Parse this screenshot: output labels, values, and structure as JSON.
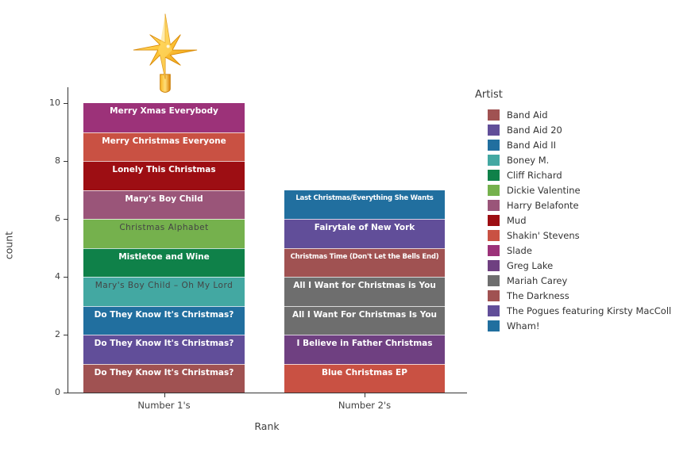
{
  "figure": {
    "background": "#FFFFFF",
    "axis_color": "#333333",
    "y_axis": {
      "label": "count"
    },
    "x_axis": {
      "label": "Rank"
    },
    "decorations": {
      "star": "gold christmas tree-topper star above Number 1's bar"
    },
    "legend": {
      "title": "Artist",
      "items": [
        {
          "label": "Band Aid",
          "color": "#A05252"
        },
        {
          "label": "Band Aid 20",
          "color": "#614E99"
        },
        {
          "label": "Band Aid II",
          "color": "#216F9F"
        },
        {
          "label": "Boney M.",
          "color": "#43A8A2"
        },
        {
          "label": "Cliff Richard",
          "color": "#0F8149"
        },
        {
          "label": "Dickie Valentine",
          "color": "#75B14D"
        },
        {
          "label": "Harry Belafonte",
          "color": "#9A5579"
        },
        {
          "label": "Mud",
          "color": "#9D0E13"
        },
        {
          "label": "Shakin' Stevens",
          "color": "#C95143"
        },
        {
          "label": "Slade",
          "color": "#9C3279"
        },
        {
          "label": "Greg Lake",
          "color": "#6F4081"
        },
        {
          "label": "Mariah Carey",
          "color": "#6E6E6E"
        },
        {
          "label": "The Darkness",
          "color": "#A05252"
        },
        {
          "label": "The Pogues featuring Kirsty MacColl",
          "color": "#614E99"
        },
        {
          "label": "Wham!",
          "color": "#216F9F"
        }
      ]
    }
  },
  "chart_data": {
    "type": "bar",
    "stacked": true,
    "title": "",
    "xlabel": "Rank",
    "ylabel": "count",
    "ylim": [
      0,
      10
    ],
    "yticks": [
      0,
      2,
      4,
      6,
      8,
      10
    ],
    "categories": [
      "Number 1's",
      "Number 2's"
    ],
    "legend_position": "right",
    "grid": false,
    "bars": [
      {
        "category": "Number 1's",
        "total": 10,
        "segments": [
          {
            "label": "Do They Know It's Christmas?",
            "artist": "Band Aid",
            "value": 1,
            "color": "#A05252",
            "text_color": "#FFFFFF"
          },
          {
            "label": "Do They Know It's Christmas?",
            "artist": "Band Aid 20",
            "value": 1,
            "color": "#614E99",
            "text_color": "#FFFFFF"
          },
          {
            "label": "Do They Know It's Christmas?",
            "artist": "Band Aid II",
            "value": 1,
            "color": "#216F9F",
            "text_color": "#FFFFFF"
          },
          {
            "label": "Mary's Boy Child – Oh My Lord",
            "artist": "Boney M.",
            "value": 1,
            "color": "#43A8A2",
            "text_color": "#444444"
          },
          {
            "label": "Mistletoe and Wine",
            "artist": "Cliff Richard",
            "value": 1,
            "color": "#0F8149",
            "text_color": "#FFFFFF"
          },
          {
            "label": "Christmas Alphabet",
            "artist": "Dickie Valentine",
            "value": 1,
            "color": "#75B14D",
            "text_color": "#444444"
          },
          {
            "label": "Mary's Boy Child",
            "artist": "Harry Belafonte",
            "value": 1,
            "color": "#9A5579",
            "text_color": "#FFFFFF"
          },
          {
            "label": "Lonely This Christmas",
            "artist": "Mud",
            "value": 1,
            "color": "#9D0E13",
            "text_color": "#FFFFFF"
          },
          {
            "label": "Merry Christmas Everyone",
            "artist": "Shakin' Stevens",
            "value": 1,
            "color": "#C95143",
            "text_color": "#FFFFFF"
          },
          {
            "label": "Merry Xmas Everybody",
            "artist": "Slade",
            "value": 1,
            "color": "#9C3279",
            "text_color": "#FFFFFF"
          }
        ]
      },
      {
        "category": "Number 2's",
        "total": 7,
        "segments": [
          {
            "label": "Blue Christmas EP",
            "artist": "Shakin' Stevens",
            "value": 1,
            "color": "#C95143",
            "text_color": "#FFFFFF"
          },
          {
            "label": "I Believe in Father Christmas",
            "artist": "Greg Lake",
            "value": 1,
            "color": "#6F4081",
            "text_color": "#FFFFFF"
          },
          {
            "label": "All I Want For Christmas Is You",
            "artist": "Mariah Carey",
            "value": 1,
            "color": "#6E6E6E",
            "text_color": "#FFFFFF"
          },
          {
            "label": "All I Want for Christmas is You",
            "artist": "Mariah Carey",
            "value": 1,
            "color": "#6E6E6E",
            "text_color": "#FFFFFF"
          },
          {
            "label": "Christmas Time (Don't Let the Bells End)",
            "artist": "The Darkness",
            "value": 1,
            "color": "#A05252",
            "text_color": "#FFFFFF"
          },
          {
            "label": "Fairytale of New York",
            "artist": "The Pogues featuring Kirsty MacColl",
            "value": 1,
            "color": "#614E99",
            "text_color": "#FFFFFF"
          },
          {
            "label": "Last Christmas/Everything She Wants",
            "artist": "Wham!",
            "value": 1,
            "color": "#216F9F",
            "text_color": "#FFFFFF"
          }
        ]
      }
    ]
  }
}
